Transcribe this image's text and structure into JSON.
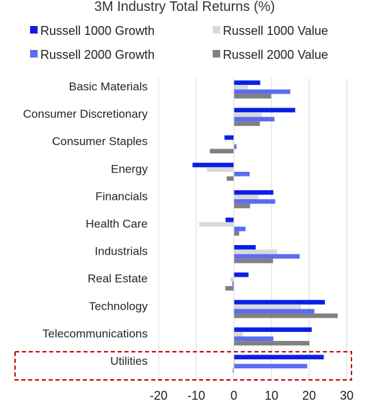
{
  "chart_data": {
    "type": "bar",
    "orientation": "horizontal",
    "title": "3M Industry Total Returns (%)",
    "xlabel": "",
    "ylabel": "",
    "xlim": [
      -20,
      30
    ],
    "xticks": [
      "-20",
      "-10",
      "0",
      "10",
      "20",
      "30"
    ],
    "grid": "vertical",
    "legend_position": "top",
    "categories": [
      "Basic Materials",
      "Consumer Discretionary",
      "Consumer Staples",
      "Energy",
      "Financials",
      "Health Care",
      "Industrials",
      "Real Estate",
      "Technology",
      "Telecommunications",
      "Utilities"
    ],
    "series": [
      {
        "name": "Russell 1000 Growth",
        "color": "#0a1fe6",
        "values": [
          7.0,
          16.3,
          -2.5,
          -11.0,
          10.5,
          -2.2,
          5.8,
          3.9,
          24.2,
          20.7,
          23.9
        ]
      },
      {
        "name": "Russell 1000 Value",
        "color": "#d9d9d9",
        "values": [
          3.8,
          7.5,
          -0.3,
          -7.2,
          6.6,
          -9.2,
          11.5,
          -0.9,
          17.8,
          2.4,
          0.3
        ]
      },
      {
        "name": "Russell 2000 Growth",
        "color": "#5c6cf0",
        "values": [
          15.0,
          10.8,
          0.7,
          4.2,
          11.0,
          3.1,
          17.5,
          -0.4,
          21.4,
          10.5,
          19.5
        ]
      },
      {
        "name": "Russell 2000 Value",
        "color": "#808080",
        "values": [
          9.9,
          6.9,
          -6.4,
          -1.9,
          4.3,
          1.4,
          10.4,
          -2.3,
          27.6,
          20.1,
          -0.3
        ]
      }
    ],
    "highlight": {
      "category": "Utilities",
      "style": "dashed-box",
      "color": "#c00000"
    }
  }
}
